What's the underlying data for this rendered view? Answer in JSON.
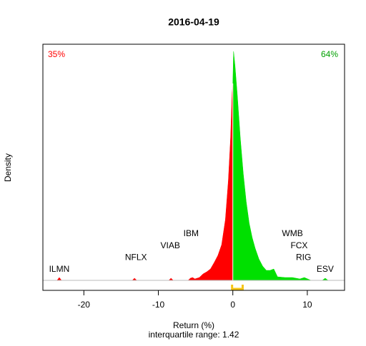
{
  "chart_data": {
    "type": "density",
    "title": "2016-04-19",
    "xlabel": "Return (%)",
    "ylabel": "Density",
    "xlim": [
      -25.5,
      15
    ],
    "ylim": [
      -0.014,
      0.331
    ],
    "xticks": [
      -20,
      -10,
      0,
      10
    ],
    "series": [
      {
        "color": "#ff0000",
        "x": [
          -25,
          -23.6,
          -23.3,
          -23,
          -20,
          -13.5,
          -13.2,
          -12.9,
          -9,
          -8.6,
          -8.3,
          -8,
          -6,
          -5.7,
          -5.4,
          -5.1,
          -4.5,
          -4,
          -3.5,
          -3,
          -2.5,
          -2,
          -1.5,
          -1,
          -0.6,
          -0.3,
          -0.1,
          0
        ],
        "values": [
          0,
          0,
          0.004,
          0,
          0,
          0,
          0.003,
          0,
          0,
          0,
          0.003,
          0,
          0,
          0.003,
          0.004,
          0.002,
          0.004,
          0.009,
          0.012,
          0.016,
          0.025,
          0.035,
          0.05,
          0.085,
          0.14,
          0.2,
          0.26,
          0.276
        ]
      },
      {
        "color": "#00e000",
        "x": [
          0,
          0.1,
          0.3,
          0.6,
          1,
          1.4,
          1.8,
          2.2,
          2.6,
          3,
          3.5,
          4,
          4.5,
          5,
          5.5,
          6,
          7,
          8,
          9,
          9.6,
          10.5,
          12,
          12.4,
          12.8,
          14
        ],
        "values": [
          0.276,
          0.321,
          0.3,
          0.26,
          0.2,
          0.15,
          0.11,
          0.08,
          0.06,
          0.045,
          0.03,
          0.02,
          0.014,
          0.014,
          0.016,
          0.005,
          0.004,
          0.004,
          0.002,
          0.004,
          0,
          0,
          0.003,
          0,
          0
        ]
      }
    ],
    "share_labels": [
      {
        "text": "35%",
        "color": "#ff0000"
      },
      {
        "text": "64%",
        "color": "#00a000"
      }
    ],
    "point_labels": [
      {
        "text": "ILMN",
        "x": -23.3
      },
      {
        "text": "NFLX",
        "x": -13
      },
      {
        "text": "VIAB",
        "x": -8.4
      },
      {
        "text": "IBM",
        "x": -5.6
      },
      {
        "text": "WMB",
        "x": 8
      },
      {
        "text": "FCX",
        "x": 8.9
      },
      {
        "text": "RIG",
        "x": 9.5
      },
      {
        "text": "ESV",
        "x": 12.4
      }
    ],
    "iqr": [
      -0.1,
      1.32
    ],
    "iqr_color": "#f5c518",
    "iqr_label": "interquartile range: 1.42"
  }
}
